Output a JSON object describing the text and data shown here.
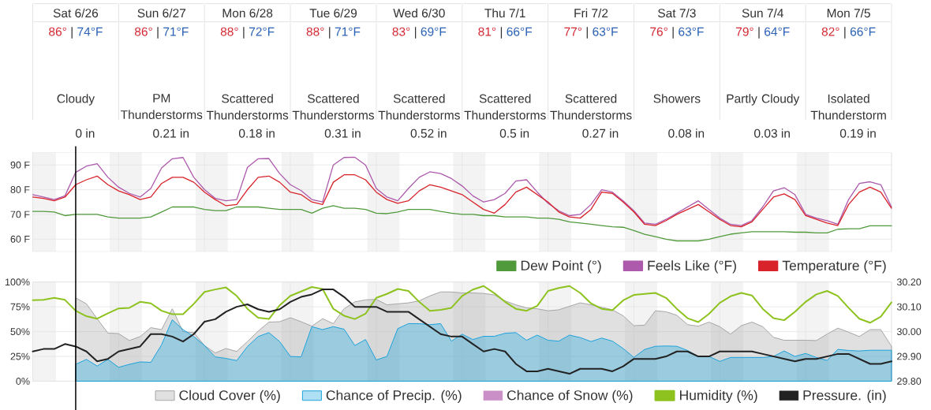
{
  "chart_data": [
    {
      "type": "other",
      "annotations": [
        "Sat 6/26",
        "86°",
        "|",
        "74°F",
        "Cloudy",
        "0 in",
        "Sun 6/27",
        "86°",
        "|",
        "71°F",
        "PM Thunderstorms",
        "0.21 in",
        "Mon 6/28",
        "88°",
        "|",
        "72°F",
        "Scattered Thunderstorms",
        "0.18 in",
        "Tue 6/29",
        "88°",
        "|",
        "71°F",
        "Scattered Thunderstorms",
        "0.31 in",
        "Wed 6/30",
        "83°",
        "|",
        "69°F",
        "Scattered Thunderstorms",
        "0.52 in",
        "Thu 7/1",
        "81°",
        "|",
        "66°F",
        "Scattered Thunderstorms",
        "0.5 in",
        "Fri 7/2",
        "77°",
        "|",
        "63°F",
        "Scattered Thunderstorms",
        "0.27 in",
        "Sat 7/3",
        "76°",
        "|",
        "63°F",
        "Showers",
        "0.08 in",
        "Sun 7/4",
        "79°",
        "|",
        "64°F",
        "Partly Cloudy",
        "0.03 in",
        "Mon 7/5",
        "82°",
        "|",
        "66°F",
        "Isolated Thunderstorm",
        "0.19 in"
      ]
    },
    {
      "type": "line",
      "categories": [
        null,
        null,
        null,
        null,
        null,
        null,
        null,
        null,
        null,
        null,
        null,
        null,
        null,
        null,
        null,
        null,
        null,
        null,
        null,
        null,
        null,
        null,
        null,
        null,
        null,
        null,
        null,
        null,
        null,
        null,
        null,
        null,
        null,
        null,
        null,
        null,
        null,
        null,
        null,
        null,
        null,
        null,
        null,
        null,
        null,
        null,
        null,
        null,
        null,
        null,
        null,
        null,
        null,
        null,
        null,
        null,
        null,
        null,
        null,
        null,
        null,
        null,
        null,
        null,
        null,
        null,
        null,
        null,
        null,
        null,
        null,
        null,
        null,
        null,
        null,
        null,
        null,
        null,
        null,
        null,
        null
      ],
      "ylim": [
        55,
        95
      ],
      "yticks": [
        {
          "value": 60,
          "label": "60 F"
        },
        {
          "value": 70,
          "label": "70 F"
        },
        {
          "value": 80,
          "label": "80 F"
        },
        {
          "value": 90,
          "label": "90 F"
        }
      ],
      "tick_labels": "y",
      "grid": true,
      "legend": "bottom right",
      "series": [
        {
          "name": "Dew Point (°)",
          "color": "#519a3c",
          "values": [
            71.2,
            71.2,
            71,
            69.5,
            70,
            70,
            70,
            69,
            68.5,
            68.5,
            68.5,
            69,
            71,
            73,
            73,
            73,
            72,
            71.5,
            71.5,
            73,
            73,
            73,
            72.5,
            72,
            72,
            72,
            70.5,
            72.5,
            73.5,
            72.5,
            72.5,
            72,
            70.5,
            70.3,
            71,
            72,
            72,
            72,
            71.2,
            70.5,
            70,
            70,
            69.5,
            69.5,
            69,
            69,
            69,
            68.5,
            68.5,
            68,
            67,
            66.5,
            66,
            65.5,
            65,
            64.8,
            63.5,
            62,
            61,
            60,
            59.3,
            59.3,
            59.3,
            60,
            61,
            62,
            62.5,
            63,
            63,
            63,
            63,
            62.8,
            62.8,
            62.5,
            62.5,
            64,
            64.2,
            64.2,
            65.4,
            65.4,
            65.4
          ]
        },
        {
          "name": "Feels Like (°F)",
          "color": "#ad5aad",
          "values": [
            78,
            77,
            76,
            77.5,
            87,
            89.5,
            90.5,
            85,
            81,
            78.5,
            77,
            80.5,
            88.8,
            92.5,
            93,
            85,
            80,
            76.5,
            75.5,
            76,
            89,
            92.5,
            92.6,
            86.5,
            82,
            79.6,
            76,
            75,
            90,
            93,
            93.1,
            90,
            80.5,
            77,
            75.5,
            80.5,
            85,
            87.2,
            86.5,
            84.5,
            81.5,
            77.5,
            75,
            76,
            78.5,
            83.5,
            84,
            79,
            74.5,
            71.5,
            69.5,
            70,
            74,
            80,
            79,
            75.5,
            71.5,
            66.5,
            66,
            68,
            70.5,
            73,
            75.5,
            72,
            68.5,
            66,
            65.5,
            67.5,
            73,
            79.5,
            80.8,
            78,
            70,
            68.5,
            67.5,
            66,
            76,
            82.5,
            83.2,
            82,
            73
          ]
        },
        {
          "name": "Temperature (°F)",
          "color": "#d8232a",
          "values": [
            77,
            76.5,
            75.5,
            77,
            82,
            84,
            85.5,
            82,
            79.5,
            78,
            76,
            77,
            82.5,
            85,
            85,
            83,
            79,
            76,
            73.5,
            74,
            80,
            85,
            85.5,
            83,
            79,
            78,
            75,
            74,
            83,
            86,
            86,
            84,
            79,
            76,
            74.5,
            75.5,
            79.5,
            82,
            81,
            79.5,
            78,
            75,
            72,
            70.5,
            74,
            79,
            81,
            78,
            75,
            71,
            69,
            68.5,
            72,
            79,
            78.5,
            75,
            71,
            66,
            65.5,
            67.5,
            70,
            72,
            74,
            71,
            68,
            65.5,
            65,
            67,
            72,
            77,
            78.3,
            76,
            69.5,
            68,
            66.5,
            65.5,
            74,
            79,
            81,
            79,
            72.5
          ]
        }
      ]
    },
    {
      "type": "line",
      "categories": [
        null,
        null,
        null,
        null,
        null,
        null,
        null,
        null,
        null,
        null,
        null,
        null,
        null,
        null,
        null,
        null,
        null,
        null,
        null,
        null,
        null,
        null,
        null,
        null,
        null,
        null,
        null,
        null,
        null,
        null,
        null,
        null,
        null,
        null,
        null,
        null,
        null,
        null,
        null,
        null,
        null,
        null,
        null,
        null,
        null,
        null,
        null,
        null,
        null,
        null,
        null,
        null,
        null,
        null,
        null,
        null,
        null,
        null,
        null,
        null,
        null,
        null,
        null,
        null,
        null,
        null,
        null,
        null,
        null,
        null,
        null,
        null,
        null,
        null,
        null,
        null,
        null,
        null,
        null,
        null,
        null
      ],
      "ylim": [
        0,
        100
      ],
      "yticks": [
        {
          "value": 0,
          "label": "0%"
        },
        {
          "value": 25,
          "label": "25%"
        },
        {
          "value": 50,
          "label": "50%"
        },
        {
          "value": 75,
          "label": "75%"
        },
        {
          "value": 100,
          "label": "100%"
        }
      ],
      "y2lim": [
        29.8,
        30.2
      ],
      "y2ticks": [
        {
          "value": 29.8,
          "label": "29.80"
        },
        {
          "value": 29.9,
          "label": "29.90"
        },
        {
          "value": 30.0,
          "label": "30.00"
        },
        {
          "value": 30.1,
          "label": "30.10"
        },
        {
          "value": 30.2,
          "label": "30.20"
        }
      ],
      "tick_labels": "y",
      "grid": true,
      "legend": "bottom right",
      "series": [
        {
          "name": "Cloud Cover (%)",
          "type": "area",
          "color": "#a6a6a6",
          "values": [
            null,
            null,
            null,
            null,
            84,
            78,
            63,
            48.5,
            48,
            41,
            45,
            54,
            52,
            73,
            50,
            49,
            36,
            28.5,
            33,
            30,
            40,
            50.5,
            59.6,
            60,
            64,
            60,
            55.5,
            63,
            58,
            73,
            80,
            82,
            82.6,
            77,
            78,
            79,
            81,
            86,
            90,
            90,
            89,
            89,
            88.5,
            87,
            81,
            77,
            74,
            73,
            71,
            72,
            75.5,
            79,
            77,
            74.5,
            72,
            66,
            56,
            56.5,
            71,
            70,
            66.5,
            57,
            55.5,
            59.6,
            55,
            47.4,
            56,
            59.6,
            55,
            44.3,
            41.3,
            41.3,
            41.3,
            41,
            47.5,
            53.5,
            49.5,
            45,
            52,
            52,
            35.2
          ]
        },
        {
          "name": "Chance of Precip. (%)",
          "type": "area",
          "color": "#1ba3dc",
          "values": [
            null,
            null,
            null,
            null,
            17,
            22,
            15.3,
            22,
            14,
            17,
            19.5,
            19,
            36.7,
            62,
            52,
            45,
            36,
            24.5,
            23,
            20.8,
            35,
            45,
            49,
            40,
            25,
            24.5,
            55,
            52,
            55,
            52.5,
            36,
            42,
            21.4,
            25,
            53,
            58.1,
            58,
            57,
            58,
            40.4,
            47.4,
            42,
            45.3,
            45.3,
            48.3,
            49,
            41.3,
            46.5,
            41.3,
            40.4,
            46.5,
            44,
            40,
            43.5,
            40.4,
            33,
            24,
            32,
            35.2,
            35.5,
            35.2,
            31,
            25,
            25,
            20,
            23.9,
            23.9,
            23.9,
            23.9,
            25,
            30.5,
            25,
            28,
            23.9,
            21,
            32.1,
            31,
            30.5,
            31.2,
            31.2,
            31.2
          ]
        },
        {
          "name": "Chance of Snow (%)",
          "type": "area",
          "color": "#c98fc6",
          "values": [
            null,
            null,
            null,
            null,
            null,
            null,
            null,
            null,
            null,
            null,
            null,
            null,
            null,
            null,
            null,
            null,
            null,
            null,
            null,
            null,
            null,
            null,
            null,
            null,
            null,
            null,
            null,
            null,
            null,
            null,
            null,
            null,
            null,
            null,
            null,
            null,
            null,
            null,
            null,
            null,
            null,
            null,
            null,
            null,
            null,
            null,
            null,
            null,
            null,
            null,
            null,
            null,
            null,
            null,
            null,
            null,
            null,
            null,
            null,
            null,
            null,
            null,
            null,
            null,
            null,
            null,
            null,
            null,
            null,
            null,
            null,
            null,
            null,
            null,
            null,
            null,
            null,
            null,
            null,
            null,
            null
          ]
        },
        {
          "name": "Humidity (%)",
          "color": "#8dc21f",
          "values": [
            81.7,
            82,
            84,
            82,
            71,
            65.5,
            63,
            68.5,
            73.4,
            74,
            80,
            78.5,
            71,
            67.5,
            67.5,
            78,
            90,
            92.5,
            94.5,
            86,
            73,
            64,
            62.7,
            76.5,
            86,
            90.5,
            95,
            93,
            73,
            66,
            62.7,
            68,
            84,
            88,
            93,
            91,
            80,
            71,
            72,
            74,
            86,
            92.4,
            96,
            88.7,
            80,
            73,
            71,
            76,
            91,
            94,
            96,
            89,
            78.5,
            73,
            71.5,
            81.5,
            87,
            88,
            89,
            84,
            73,
            63.5,
            59.6,
            68,
            79,
            85.6,
            89,
            86.5,
            73,
            63.5,
            61.5,
            70,
            80,
            87.5,
            91,
            86,
            74,
            63,
            59,
            65,
            79.5
          ]
        },
        {
          "name": "Pressure. (in)",
          "axis": "y2",
          "color": "#222222",
          "values": [
            29.92,
            29.93,
            29.93,
            29.95,
            29.94,
            29.92,
            29.88,
            29.89,
            29.92,
            29.93,
            29.94,
            29.99,
            29.99,
            29.98,
            29.96,
            29.99,
            30.04,
            30.05,
            30.08,
            30.1,
            30.11,
            30.09,
            30.08,
            30.09,
            30.12,
            30.14,
            30.15,
            30.17,
            30.17,
            30.14,
            30.1,
            30.1,
            30.1,
            30.08,
            30.08,
            30.08,
            30.05,
            30.02,
            29.99,
            29.98,
            29.98,
            29.95,
            29.92,
            29.93,
            29.92,
            29.87,
            29.84,
            29.84,
            29.85,
            29.84,
            29.83,
            29.85,
            29.85,
            29.85,
            29.84,
            29.86,
            29.89,
            29.89,
            29.89,
            29.9,
            29.92,
            29.92,
            29.9,
            29.9,
            29.92,
            29.92,
            29.92,
            29.92,
            29.91,
            29.9,
            29.89,
            29.88,
            29.89,
            29.89,
            29.9,
            29.91,
            29.91,
            29.89,
            29.87,
            29.87,
            29.88
          ]
        }
      ]
    }
  ]
}
